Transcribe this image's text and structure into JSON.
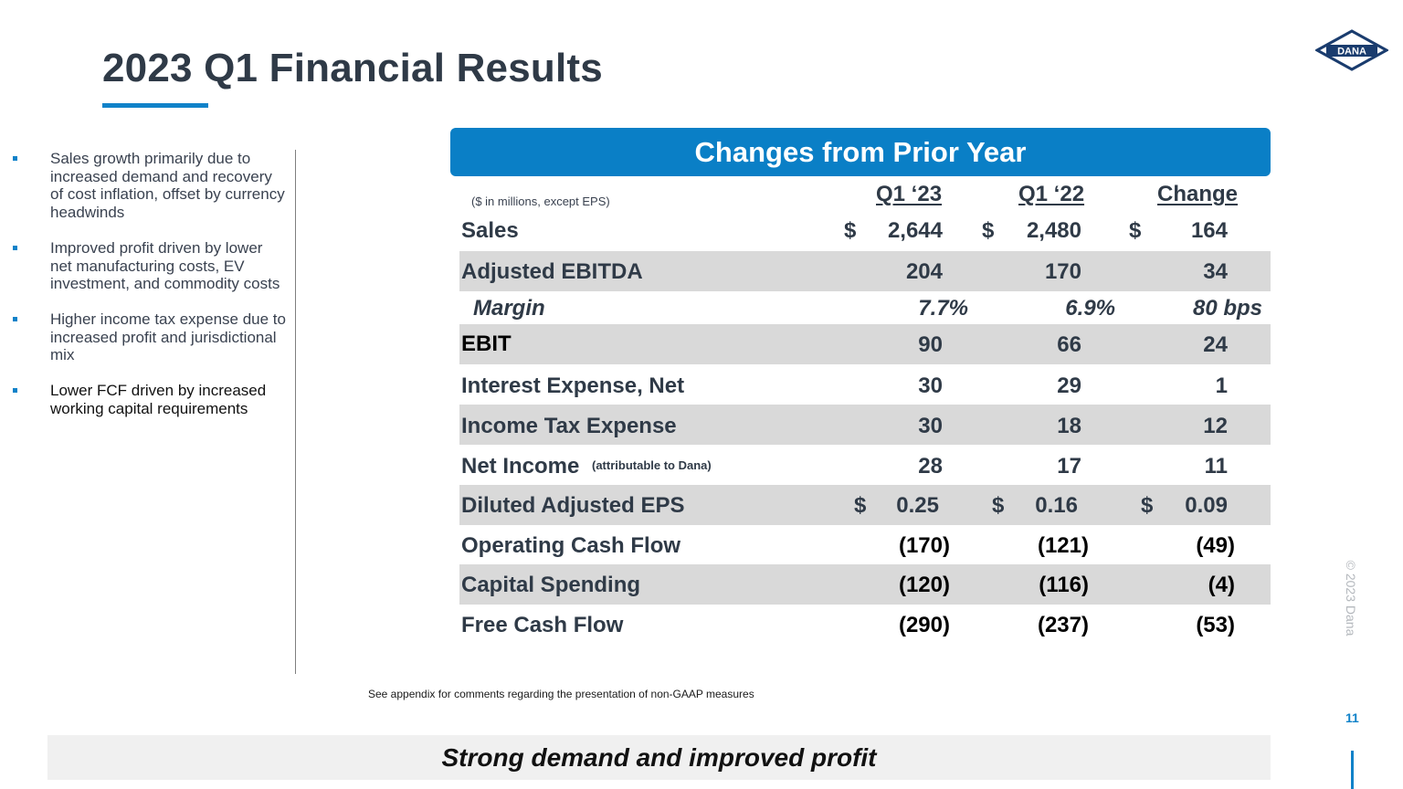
{
  "header": {
    "title": "2023 Q1 Financial Results",
    "logo_text": "DANA"
  },
  "bullets": [
    "Sales growth primarily due to increased demand and recovery of cost inflation, offset by currency headwinds",
    "Improved profit driven by lower net manufacturing costs, EV investment, and commodity costs",
    "Higher income tax expense due to increased profit and jurisdictional mix",
    "Lower FCF driven by increased working capital requirements"
  ],
  "table": {
    "banner": "Changes from Prior Year",
    "units_note": "($ in millions, except EPS)",
    "columns": [
      "Q1 ‘23",
      "Q1 ‘22",
      "Change"
    ],
    "currency_symbol": "$",
    "rows": [
      {
        "label": "Sales",
        "values": [
          "2,644",
          "2,480",
          "164"
        ]
      },
      {
        "label": "Adjusted EBITDA",
        "values": [
          "204",
          "170",
          "34"
        ]
      },
      {
        "label": "Margin",
        "values": [
          "7.7%",
          "6.9%",
          "80 bps"
        ]
      },
      {
        "label": "EBIT",
        "values": [
          "90",
          "66",
          "24"
        ]
      },
      {
        "label": "Interest Expense, Net",
        "values": [
          "30",
          "29",
          "1"
        ]
      },
      {
        "label": "Income Tax Expense",
        "values": [
          "30",
          "18",
          "12"
        ]
      },
      {
        "label": "Net Income",
        "sublabel": "(attributable to Dana)",
        "values": [
          "28",
          "17",
          "11"
        ]
      },
      {
        "label": "Diluted Adjusted EPS",
        "values": [
          "0.25",
          "0.16",
          "0.09"
        ]
      },
      {
        "label": "Operating Cash Flow",
        "values": [
          "(170)",
          "(121)",
          "(49)"
        ]
      },
      {
        "label": "Capital Spending",
        "values": [
          "(120)",
          "(116)",
          "(4)"
        ]
      },
      {
        "label": "Free Cash Flow",
        "values": [
          "(290)",
          "(237)",
          "(53)"
        ]
      }
    ]
  },
  "footnote": "See appendix for comments regarding the presentation of non-GAAP measures",
  "copyright": "© 2023 Dana",
  "page_number": "11",
  "tagline": "Strong demand and improved profit",
  "colors": {
    "accent_blue": "#0a7fc6",
    "title": "#2f3a47",
    "row_shade": "#d9d9d9",
    "tagline_bg": "#f0f0f0"
  }
}
